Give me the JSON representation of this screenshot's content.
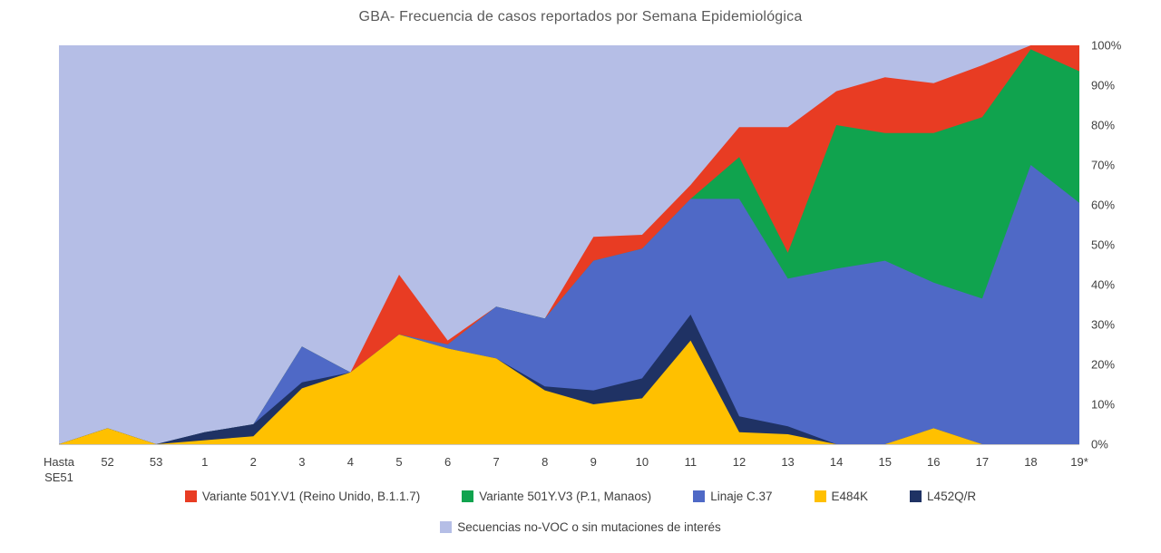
{
  "chart_data": {
    "type": "area",
    "variant": "stacked-100-percent",
    "title": "GBA- Frecuencia de casos reportados por Semana Epidemiológica",
    "x_categories": [
      "Hasta\nSE51",
      "52",
      "53",
      "1",
      "2",
      "3",
      "4",
      "5",
      "6",
      "7",
      "8",
      "9",
      "10",
      "11",
      "12",
      "13",
      "14",
      "15",
      "16",
      "17",
      "18",
      "19*"
    ],
    "y_axis": {
      "side": "right",
      "ticks": [
        "0%",
        "10%",
        "20%",
        "30%",
        "40%",
        "50%",
        "60%",
        "70%",
        "80%",
        "90%",
        "100%"
      ],
      "min": 0,
      "max": 100
    },
    "grid": "off",
    "units": "percent of reported cases",
    "series_stack_order_note": "bottom to top; remainder up to 100% is the background series",
    "series": [
      {
        "name": "E484K",
        "color": "#FFC000",
        "values": [
          0,
          4,
          0,
          1,
          2,
          14,
          18,
          27.5,
          24,
          21.5,
          13.5,
          10,
          11.5,
          26,
          3,
          2.5,
          0,
          0,
          4,
          0,
          0,
          0
        ]
      },
      {
        "name": "L452Q/R",
        "color": "#1F3264",
        "values": [
          0,
          0,
          0,
          2,
          3,
          1.5,
          0,
          0,
          0,
          0,
          1,
          3.5,
          5,
          6.5,
          4,
          2,
          0,
          0,
          0,
          0,
          0,
          0
        ]
      },
      {
        "name": "Linaje C.37",
        "color": "#4F69C6",
        "values": [
          0,
          0,
          0,
          0,
          0,
          9,
          0,
          0,
          1,
          13,
          17,
          32.5,
          32.5,
          29,
          54.5,
          37,
          44,
          46,
          36.5,
          36.5,
          70,
          60.5
        ]
      },
      {
        "name": "Variante 501Y.V3 (P.1, Manaos)",
        "color": "#10A34E",
        "values": [
          0,
          0,
          0,
          0,
          0,
          0,
          0,
          0,
          0,
          0,
          0,
          0,
          0,
          0,
          10.5,
          6.5,
          36,
          32,
          37.5,
          45.5,
          29,
          33
        ]
      },
      {
        "name": "Variante 501Y.V1 (Reino Unido, B.1.1.7)",
        "color": "#E83C23",
        "values": [
          0,
          0,
          0,
          0,
          0,
          0,
          0,
          15,
          1,
          0,
          0,
          6,
          3.5,
          3.5,
          7.5,
          31.5,
          8.5,
          14,
          12.5,
          13,
          1,
          6.5
        ]
      }
    ],
    "background_series": {
      "name": "Secuencias no-VOC o sin mutaciones de interés",
      "color": "#B5BEE6"
    },
    "legend": {
      "row1": [
        {
          "label": "Variante 501Y.V1 (Reino Unido, B.1.1.7)",
          "color": "#E83C23"
        },
        {
          "label": "Variante 501Y.V3 (P.1, Manaos)",
          "color": "#10A34E"
        },
        {
          "label": "Linaje C.37",
          "color": "#4F69C6"
        },
        {
          "label": "E484K",
          "color": "#FFC000"
        },
        {
          "label": "L452Q/R",
          "color": "#1F3264"
        }
      ],
      "row2": [
        {
          "label": "Secuencias no-VOC o sin mutaciones de interés",
          "color": "#B5BEE6"
        }
      ]
    }
  }
}
